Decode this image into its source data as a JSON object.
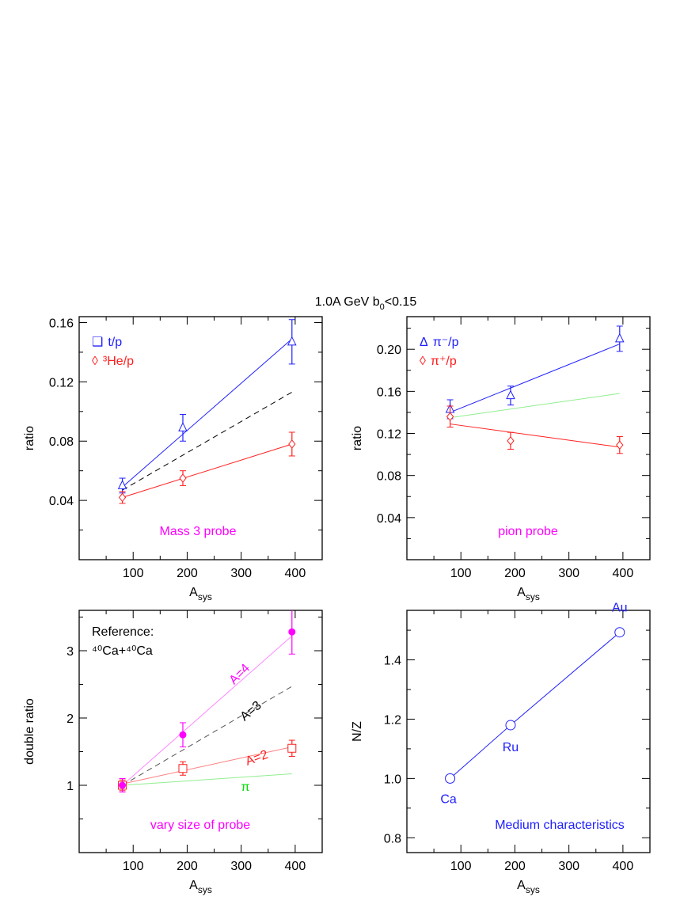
{
  "title": {
    "main": "1.0A GeV  b",
    "sub": "0",
    "tail": "<0.15"
  },
  "colors": {
    "blue": "#2020ff",
    "red": "#ff2020",
    "magenta": "#ff00ff",
    "green": "#00dd00",
    "green_line": "#90ee90",
    "magenta_line": "#ff88ff",
    "red_line": "#ff8080",
    "black": "#000000",
    "dash": "#555555"
  },
  "chart_data": [
    {
      "type": "scatter",
      "xlabel": {
        "main": "A",
        "sub": "sys"
      },
      "ylabel": "ratio",
      "xlim": [
        0,
        450
      ],
      "ylim": [
        0,
        0.164
      ],
      "xticks": [
        100,
        200,
        300,
        400
      ],
      "yticks": [
        0.04,
        0.08,
        0.12,
        0.16
      ],
      "ytick_labels": [
        "0.04",
        "0.08",
        "0.12",
        "0.16"
      ],
      "annotation": "Mass 3 probe",
      "legend": [
        {
          "symbol": "❑",
          "text": "t/p",
          "color": "blue"
        },
        {
          "symbol": "◊",
          "text": "³He/p",
          "color": "red"
        }
      ],
      "series": [
        {
          "marker": "triangle",
          "color": "blue",
          "x": [
            80,
            192,
            394
          ],
          "y": [
            0.05,
            0.089,
            0.147
          ],
          "err": [
            0.005,
            0.009,
            0.015
          ]
        },
        {
          "marker": "diamond",
          "color": "red",
          "x": [
            80,
            192,
            394
          ],
          "y": [
            0.042,
            0.055,
            0.078
          ],
          "err": [
            0.004,
            0.005,
            0.008
          ]
        }
      ],
      "lines": [
        {
          "color": "blue",
          "x": [
            80,
            394
          ],
          "y": [
            0.049,
            0.149
          ]
        },
        {
          "color": "red",
          "x": [
            80,
            394
          ],
          "y": [
            0.042,
            0.078
          ]
        },
        {
          "color": "black",
          "dashed": true,
          "x": [
            80,
            394
          ],
          "y": [
            0.047,
            0.113
          ]
        }
      ]
    },
    {
      "type": "scatter",
      "xlabel": {
        "main": "A",
        "sub": "sys"
      },
      "ylabel": "ratio",
      "xlim": [
        0,
        450
      ],
      "ylim": [
        0,
        0.231
      ],
      "xticks": [
        100,
        200,
        300,
        400
      ],
      "yticks": [
        0.04,
        0.08,
        0.12,
        0.16,
        0.2
      ],
      "ytick_labels": [
        "0.04",
        "0.08",
        "0.12",
        "0.16",
        "0.20"
      ],
      "annotation": "pion probe",
      "legend": [
        {
          "symbol": "Δ",
          "text": "π⁻/p",
          "color": "blue"
        },
        {
          "symbol": "◊",
          "text": "π⁺/p",
          "color": "red"
        }
      ],
      "series": [
        {
          "marker": "triangle",
          "color": "blue",
          "x": [
            80,
            192,
            394
          ],
          "y": [
            0.143,
            0.156,
            0.21
          ],
          "err": [
            0.009,
            0.009,
            0.012
          ]
        },
        {
          "marker": "diamond",
          "color": "red",
          "x": [
            80,
            192,
            394
          ],
          "y": [
            0.136,
            0.113,
            0.109
          ],
          "err": [
            0.01,
            0.008,
            0.008
          ]
        }
      ],
      "lines": [
        {
          "color": "blue",
          "x": [
            80,
            394
          ],
          "y": [
            0.14,
            0.205
          ]
        },
        {
          "color": "red",
          "x": [
            80,
            394
          ],
          "y": [
            0.129,
            0.107
          ]
        },
        {
          "color": "green_line",
          "x": [
            80,
            394
          ],
          "y": [
            0.135,
            0.158
          ]
        }
      ]
    },
    {
      "type": "scatter",
      "xlabel": {
        "main": "A",
        "sub": "sys"
      },
      "ylabel": "double ratio",
      "xlim": [
        0,
        450
      ],
      "ylim": [
        0,
        3.6
      ],
      "xticks": [
        100,
        200,
        300,
        400
      ],
      "yticks": [
        1,
        2,
        3
      ],
      "ytick_labels": [
        "1",
        "2",
        "3"
      ],
      "annotation": "vary size of probe",
      "reference": [
        "Reference:",
        "⁴⁰Ca+⁴⁰Ca"
      ],
      "series": [
        {
          "marker": "square",
          "color": "red",
          "x": [
            80,
            192,
            394
          ],
          "y": [
            1.0,
            1.25,
            1.55
          ],
          "err": [
            0.08,
            0.1,
            0.12
          ]
        },
        {
          "marker": "dot",
          "color": "magenta",
          "x": [
            80,
            192,
            394
          ],
          "y": [
            1.0,
            1.75,
            3.28
          ],
          "err": [
            0.1,
            0.18,
            0.33
          ]
        }
      ],
      "lines": [
        {
          "color": "magenta_line",
          "label": "A=4",
          "label_color": "magenta",
          "x": [
            80,
            394
          ],
          "y": [
            1.0,
            3.22
          ]
        },
        {
          "color": "dash",
          "dashed": true,
          "label": "A=3",
          "label_color": "black",
          "x": [
            80,
            394
          ],
          "y": [
            1.0,
            2.47
          ]
        },
        {
          "color": "red_line",
          "label": "A=2",
          "label_color": "red",
          "x": [
            80,
            394
          ],
          "y": [
            1.02,
            1.57
          ]
        },
        {
          "color": "green_line",
          "label": "π",
          "label_color": "green",
          "x": [
            80,
            394
          ],
          "y": [
            1.0,
            1.17
          ]
        }
      ]
    },
    {
      "type": "line",
      "xlabel": {
        "main": "A",
        "sub": "sys"
      },
      "ylabel": "N/Z",
      "xlim": [
        0,
        450
      ],
      "ylim": [
        0.75,
        1.567
      ],
      "xticks": [
        100,
        200,
        300,
        400
      ],
      "yticks": [
        0.8,
        1.0,
        1.2,
        1.4
      ],
      "ytick_labels": [
        "0.8",
        "1.0",
        "1.2",
        "1.4"
      ],
      "annotation": "Medium characteristics",
      "series": [
        {
          "marker": "circle",
          "color": "blue",
          "x": [
            80,
            192,
            394
          ],
          "y": [
            1.0,
            1.18,
            1.493
          ],
          "point_labels": [
            "Ca",
            "Ru",
            "Au"
          ]
        }
      ],
      "lines": [
        {
          "color": "blue",
          "x": [
            80,
            192,
            394
          ],
          "y": [
            1.0,
            1.18,
            1.493
          ]
        }
      ]
    }
  ]
}
